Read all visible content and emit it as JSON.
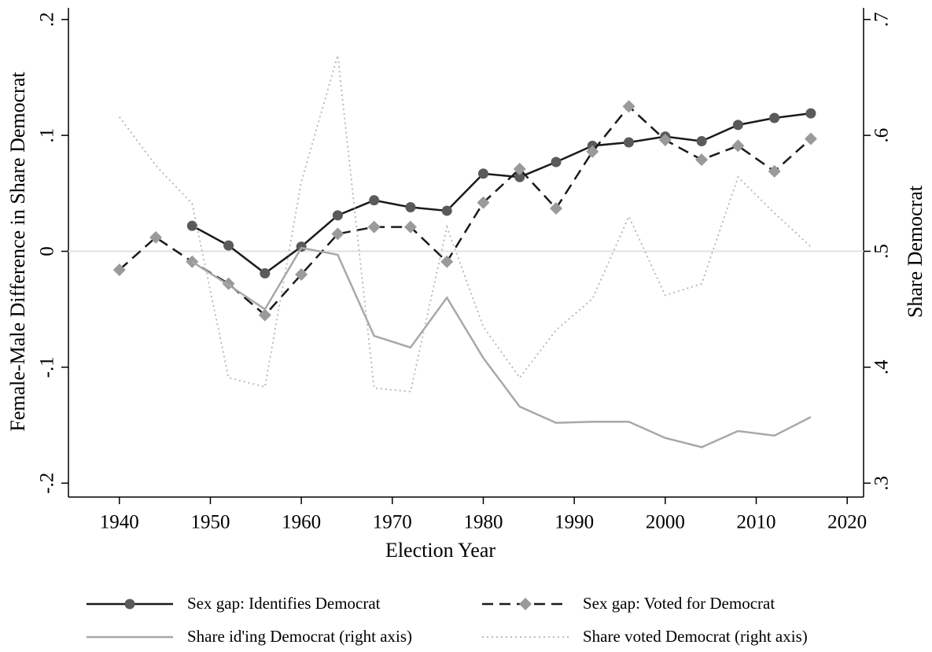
{
  "chart_data": {
    "type": "line",
    "xlabel": "Election Year",
    "ylabel": "Female-Male Difference in Share Democrat",
    "y2label": "Share Democrat",
    "x": [
      1940,
      1944,
      1948,
      1952,
      1956,
      1960,
      1964,
      1968,
      1972,
      1976,
      1980,
      1984,
      1988,
      1992,
      1996,
      2000,
      2004,
      2008,
      2012,
      2016
    ],
    "xlim": [
      1934.4,
      2021.8
    ],
    "xticks": [
      1940,
      1950,
      1960,
      1970,
      1980,
      1990,
      2000,
      2010,
      2020
    ],
    "ylim": [
      -0.212,
      0.21
    ],
    "yticks": [
      {
        "value": -0.2,
        "label": "-.2"
      },
      {
        "value": -0.1,
        "label": "-.1"
      },
      0,
      {
        "value": 0.1,
        "label": ".1"
      },
      {
        "value": 0.2,
        "label": ".2"
      }
    ],
    "y2lim": [
      0.288,
      0.71
    ],
    "y2ticks": [
      {
        "value": 0.3,
        "label": ".3"
      },
      {
        "value": 0.4,
        "label": ".4"
      },
      {
        "value": 0.5,
        "label": ".5"
      },
      {
        "value": 0.6,
        "label": ".6"
      },
      {
        "value": 0.7,
        "label": ".7"
      }
    ],
    "hline": 0,
    "series": [
      {
        "name": "Sex gap: Identifies Democrat",
        "color": "#1a1a1a",
        "marker_color": "#5a5a5a",
        "style": "solid",
        "marker": "circle",
        "axis": "y",
        "values": [
          null,
          null,
          0.022,
          0.005,
          -0.019,
          0.004,
          0.031,
          0.044,
          0.038,
          0.035,
          0.067,
          0.064,
          0.077,
          0.091,
          0.094,
          0.099,
          0.095,
          0.109,
          0.115,
          0.119
        ]
      },
      {
        "name": "Sex gap: Voted for Democrat",
        "color": "#1a1a1a",
        "marker_color": "#9a9a9a",
        "style": "dash",
        "marker": "diamond",
        "axis": "y",
        "values": [
          -0.016,
          0.012,
          -0.009,
          -0.028,
          -0.055,
          -0.02,
          0.015,
          0.021,
          0.021,
          -0.009,
          0.042,
          0.071,
          0.037,
          0.086,
          0.125,
          0.096,
          0.079,
          0.091,
          0.069,
          0.097
        ]
      },
      {
        "name": "Share id'ing Democrat (right axis)",
        "color": "#a8a8a8",
        "style": "solid",
        "marker": null,
        "axis": "y2",
        "values": [
          null,
          null,
          0.491,
          0.471,
          0.45,
          0.503,
          0.497,
          0.427,
          0.417,
          0.46,
          0.408,
          0.366,
          0.352,
          0.353,
          0.353,
          0.339,
          0.331,
          0.345,
          0.341,
          0.357
        ]
      },
      {
        "name": "Share voted Democrat (right axis)",
        "color": "#b4b4b4",
        "style": "dot",
        "marker": null,
        "axis": "y2",
        "values": [
          0.616,
          0.574,
          0.541,
          0.391,
          0.383,
          0.56,
          0.669,
          0.382,
          0.379,
          0.521,
          0.435,
          0.391,
          0.432,
          0.459,
          0.53,
          0.462,
          0.472,
          0.564,
          0.533,
          0.504
        ]
      }
    ]
  }
}
